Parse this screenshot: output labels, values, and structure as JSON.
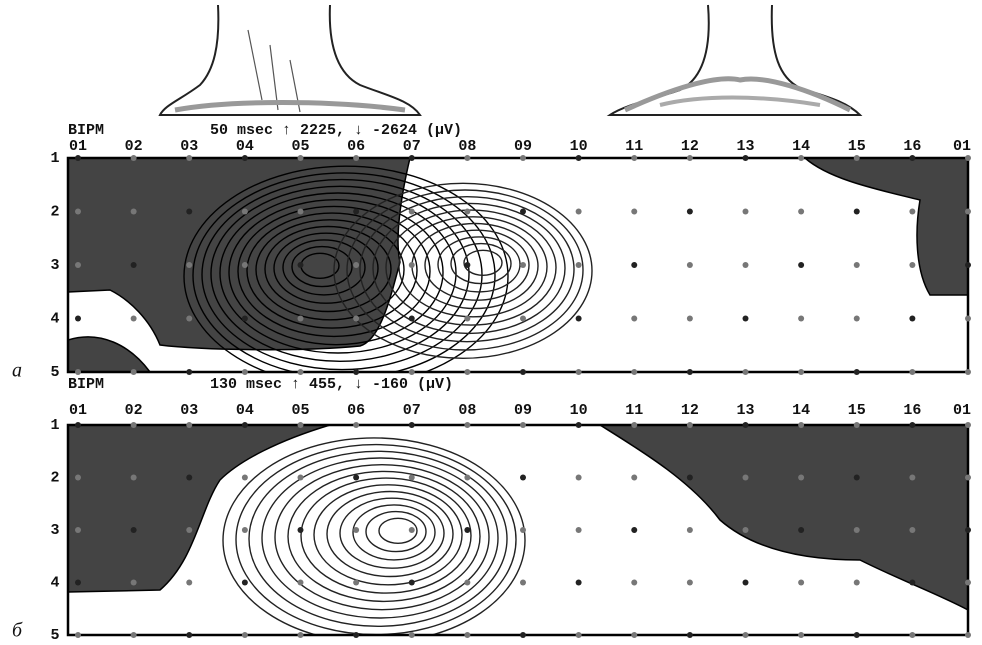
{
  "panels": [
    {
      "letter": "а",
      "label": "BIPM",
      "info": "50 msec ↑  2225, ↓ -2624 (µV)",
      "columns": [
        "01",
        "02",
        "03",
        "04",
        "05",
        "06",
        "07",
        "08",
        "09",
        "10",
        "11",
        "12",
        "13",
        "14",
        "15",
        "16",
        "01"
      ],
      "rows": [
        "1",
        "2",
        "3",
        "4",
        "5"
      ]
    },
    {
      "letter": "б",
      "label": "BIPM",
      "info": "130 msec ↑  455, ↓ -160 (µV)",
      "columns": [
        "01",
        "02",
        "03",
        "04",
        "05",
        "06",
        "07",
        "08",
        "09",
        "10",
        "11",
        "12",
        "13",
        "14",
        "15",
        "16",
        "01"
      ],
      "rows": [
        "1",
        "2",
        "3",
        "4",
        "5"
      ]
    }
  ]
}
